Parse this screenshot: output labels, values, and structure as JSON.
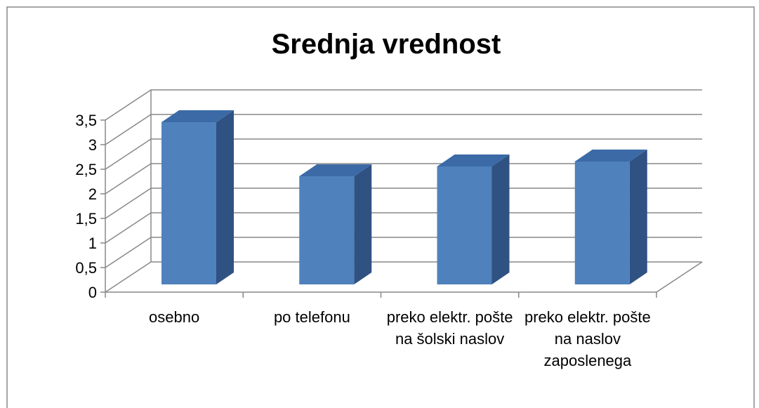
{
  "chart_data": {
    "type": "bar3d",
    "title": "Srednja vrednost",
    "categories": [
      "osebno",
      "po telefonu",
      "preko elektr. pošte na šolski naslov",
      "preko elektr. pošte na naslov zaposlenega"
    ],
    "values": [
      3.3,
      2.2,
      2.4,
      2.5
    ],
    "color": "#4f81bd",
    "ylim": [
      0,
      3.5
    ],
    "yticks": [
      0,
      {
        "value": 0.5,
        "label": "0,5"
      },
      1,
      {
        "value": 1.5,
        "label": "1,5"
      },
      2,
      {
        "value": 2.5,
        "label": "2,5"
      },
      3,
      {
        "value": 3.5,
        "label": "3,5"
      }
    ],
    "grid": true
  }
}
